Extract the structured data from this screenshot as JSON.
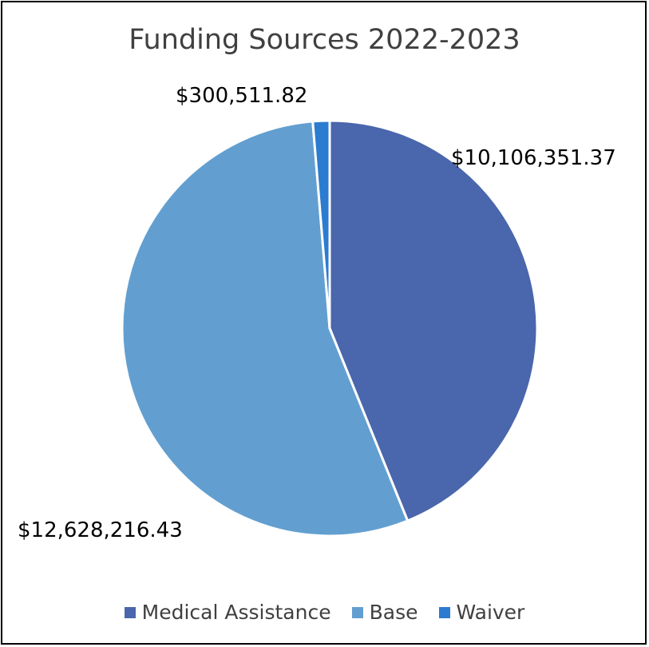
{
  "chart_data": {
    "type": "pie",
    "title": "Funding Sources 2022-2023",
    "categories": [
      "Medical Assistance",
      "Base",
      "Waiver"
    ],
    "values": [
      10106351.37,
      12628216.43,
      300511.82
    ],
    "data_labels": [
      "$10,106,351.37",
      "$12,628,216.43",
      "$300,511.82"
    ],
    "colors": [
      "#4a66ac",
      "#629fd0",
      "#2b7bd1"
    ],
    "legend_position": "bottom",
    "start_angle_deg": 0,
    "direction": "clockwise"
  }
}
